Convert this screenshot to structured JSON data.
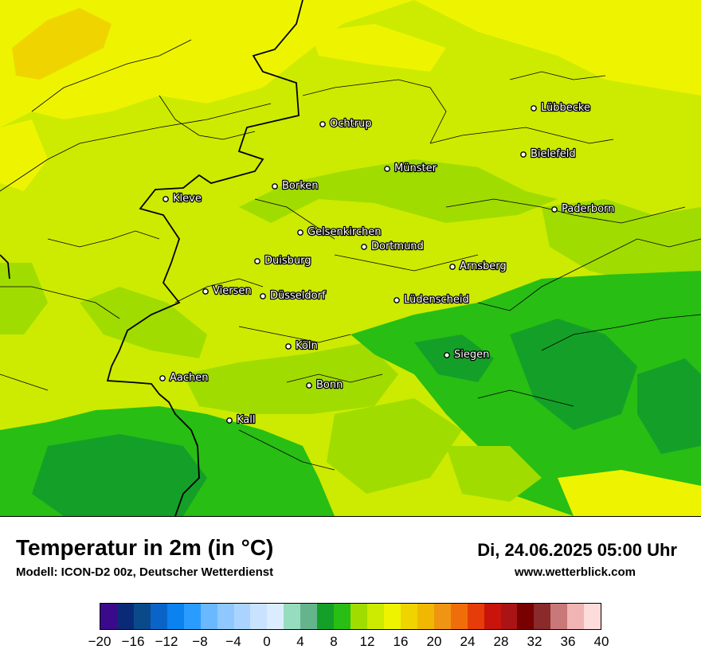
{
  "header": {
    "title": "Temperatur in 2m (in °C)",
    "subtitle": "Modell: ICON-D2 00z, Deutscher Wetterdienst",
    "datetime": "Di, 24.06.2025 05:00 Uhr",
    "website": "www.wetterblick.com"
  },
  "cities": [
    "Ochtrup",
    "Lübbecke",
    "Bielefeld",
    "Münster",
    "Borken",
    "Kleve",
    "Paderborn",
    "Gelsenkirchen",
    "Dortmund",
    "Duisburg",
    "Arnsberg",
    "Viersen",
    "Düsseldorf",
    "Lüdenscheid",
    "Köln",
    "Siegen",
    "Aachen",
    "Bonn",
    "Kall"
  ],
  "legend": {
    "colors": [
      "#3a0a8a",
      "#0a2a78",
      "#0a4a8a",
      "#0a64c8",
      "#0a82f0",
      "#2a9cff",
      "#6ab8ff",
      "#8ec8ff",
      "#aad4ff",
      "#c8e2ff",
      "#dcecff",
      "#96dcbe",
      "#64b48c",
      "#14a028",
      "#28be14",
      "#a0dc00",
      "#cceb00",
      "#eef400",
      "#f0d400",
      "#f0b800",
      "#f09414",
      "#f06e0a",
      "#e63c0a",
      "#c8140a",
      "#aa1414",
      "#780000",
      "#8a2a2a",
      "#c87878",
      "#f0b4b4",
      "#ffdcdc"
    ],
    "ticks": [
      "−20",
      "−16",
      "−12",
      "−8",
      "−4",
      "0",
      "4",
      "8",
      "12",
      "16",
      "20",
      "24",
      "28",
      "32",
      "36",
      "40"
    ]
  },
  "map_colors": {
    "yellow": "#f0f400",
    "yellow_green": "#cceb00",
    "light_green": "#a0dc00",
    "green": "#28be14",
    "dark_green": "#14a028",
    "orange": "#f0d400"
  }
}
